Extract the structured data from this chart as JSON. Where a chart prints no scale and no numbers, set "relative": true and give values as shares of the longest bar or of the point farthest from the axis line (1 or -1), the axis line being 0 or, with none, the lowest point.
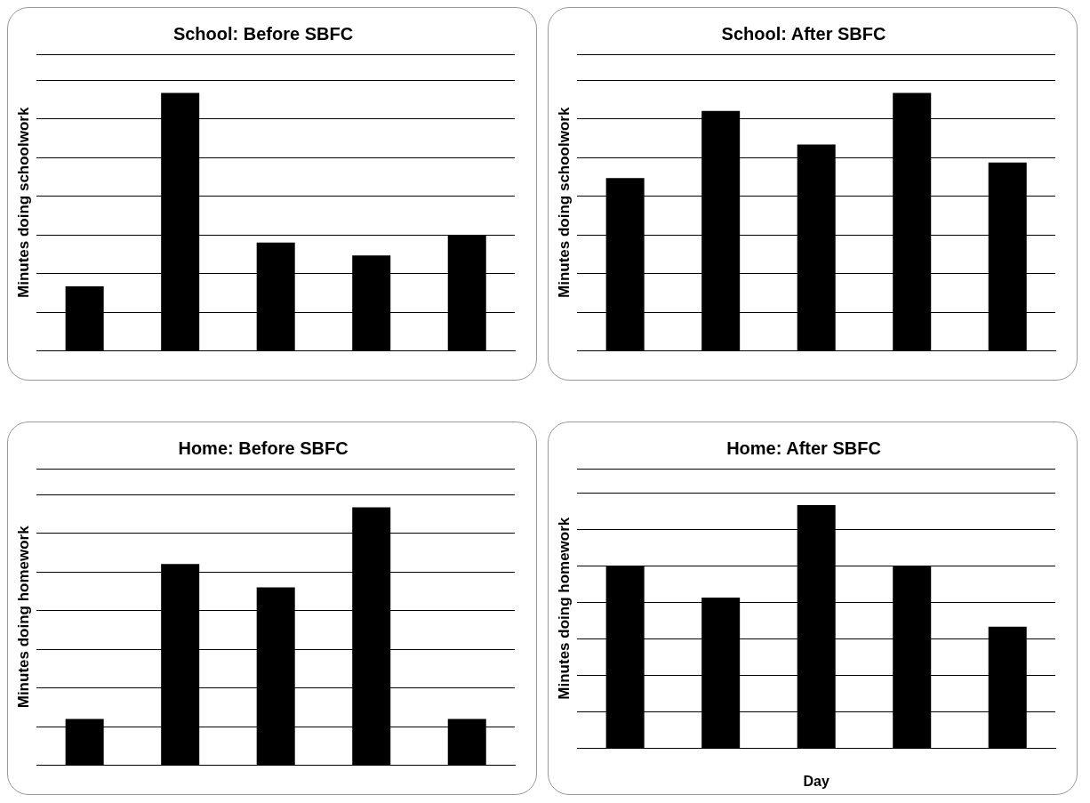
{
  "chart_data": [
    {
      "type": "bar",
      "title": "School: Before SBFC",
      "ylabel": "Minutes doing schoolwork",
      "categories": [
        null,
        null,
        null,
        null,
        null
      ],
      "values": [
        0.25,
        1,
        0.42,
        0.37,
        0.45
      ],
      "color": "#000000",
      "relative": true,
      "grid": "y",
      "legend": false
    },
    {
      "type": "bar",
      "title": "School: After SBFC",
      "ylabel": "Minutes doing schoolwork",
      "categories": [
        null,
        null,
        null,
        null,
        null
      ],
      "values": [
        0.67,
        0.93,
        0.8,
        1,
        0.73
      ],
      "color": "#000000",
      "relative": true,
      "grid": "y",
      "legend": false
    },
    {
      "type": "bar",
      "title": "Home: Before SBFC",
      "ylabel": "Minutes doing homework",
      "categories": [
        null,
        null,
        null,
        null,
        null
      ],
      "values": [
        0.18,
        0.78,
        0.69,
        1,
        0.18
      ],
      "color": "#000000",
      "relative": true,
      "grid": "y",
      "legend": false
    },
    {
      "type": "bar",
      "title": "Home: After SBFC",
      "ylabel": "Minutes doing homework",
      "xlabel": "Day",
      "categories": [
        null,
        null,
        null,
        null,
        null
      ],
      "values": [
        0.75,
        0.62,
        1,
        0.75,
        0.5
      ],
      "color": "#000000",
      "relative": true,
      "grid": "y",
      "legend": false
    }
  ]
}
